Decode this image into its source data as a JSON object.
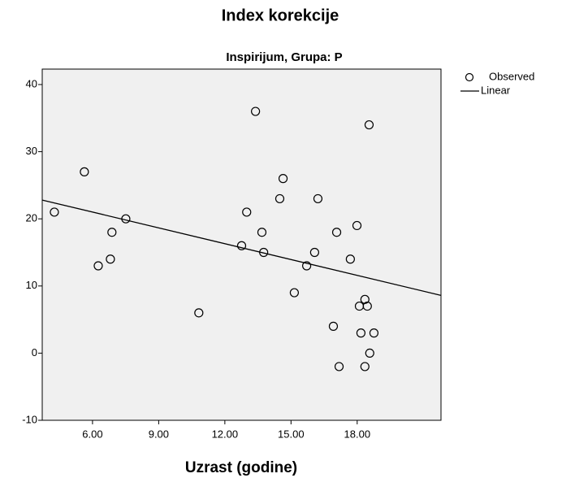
{
  "chart_data": {
    "type": "scatter",
    "title": "Index korekcije",
    "subtitle": "Inspirijum, Grupa: P",
    "xlabel": "Uzrast (godine)",
    "xlim": [
      3.72,
      21.8
    ],
    "ylim": [
      -10,
      42.3
    ],
    "xticks": [
      {
        "value": 6,
        "label": "6.00"
      },
      {
        "value": 9,
        "label": "9.00"
      },
      {
        "value": 12,
        "label": "12.00"
      },
      {
        "value": 15,
        "label": "15.00"
      },
      {
        "value": 18,
        "label": "18.00"
      }
    ],
    "yticks": [
      -10,
      0,
      10,
      20,
      30,
      40
    ],
    "series": [
      {
        "name": "Observed",
        "color": "#000000",
        "x": [
          4.27,
          5.63,
          6.26,
          6.81,
          6.88,
          7.51,
          10.82,
          12.76,
          12.99,
          13.39,
          13.68,
          13.76,
          14.49,
          14.64,
          15.15,
          15.71,
          16.07,
          16.22,
          16.92,
          17.07,
          17.18,
          17.69,
          17.99,
          18.1,
          18.17,
          18.35,
          18.35,
          18.46,
          18.54,
          18.57,
          18.76
        ],
        "values": [
          21,
          27,
          13,
          14,
          18,
          20,
          6,
          16,
          21,
          36,
          18,
          15,
          23,
          26,
          9,
          13,
          15,
          23,
          4,
          18,
          -2,
          14,
          19,
          7,
          3,
          8,
          -2,
          7,
          34,
          0,
          3
        ]
      },
      {
        "name": "Linear",
        "color": "#000000",
        "x": [
          3.72,
          21.8
        ],
        "values": [
          22.8,
          8.6
        ]
      }
    ]
  }
}
